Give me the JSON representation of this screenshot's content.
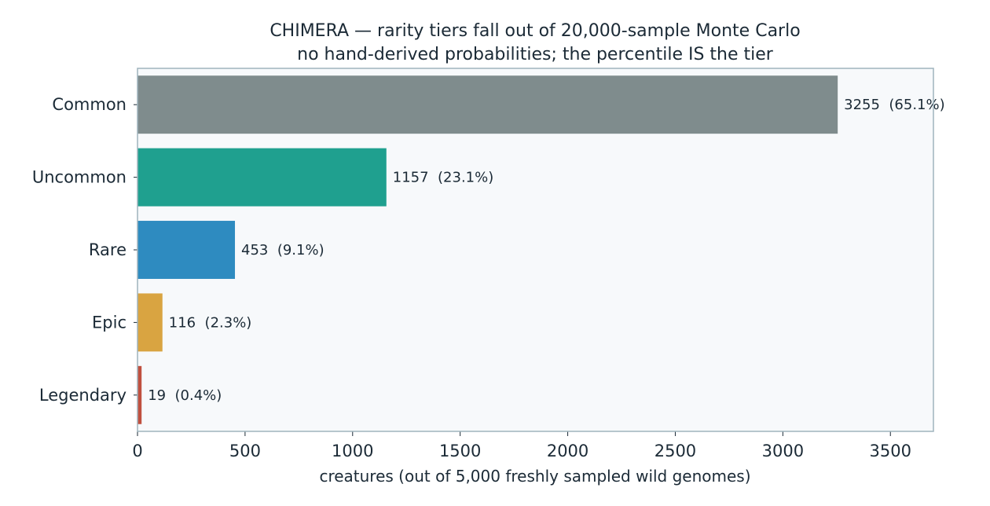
{
  "chart_data": {
    "type": "bar",
    "orientation": "horizontal",
    "title": "CHIMERA — rarity tiers fall out of 20,000-sample Monte Carlo",
    "subtitle": "no hand-derived probabilities; the percentile IS the tier",
    "xlabel": "creatures (out of 5,000 freshly sampled wild genomes)",
    "ylabel": "",
    "xlim": [
      0,
      3700
    ],
    "xticks": [
      0,
      500,
      1000,
      1500,
      2000,
      2500,
      3000,
      3500
    ],
    "grid": false,
    "categories": [
      "Common",
      "Uncommon",
      "Rare",
      "Epic",
      "Legendary"
    ],
    "values": [
      3255,
      1157,
      453,
      116,
      19
    ],
    "data_labels": [
      "3255  (65.1%)",
      "1157  (23.1%)",
      "453  (9.1%)",
      "116  (2.3%)",
      "19  (0.4%)"
    ],
    "colors": [
      "#7f8c8d",
      "#1fa08f",
      "#2e8bc0",
      "#d9a441",
      "#c0503f"
    ],
    "plot_background": "#f7f9fb",
    "frame_color": "#9fb4bd"
  }
}
